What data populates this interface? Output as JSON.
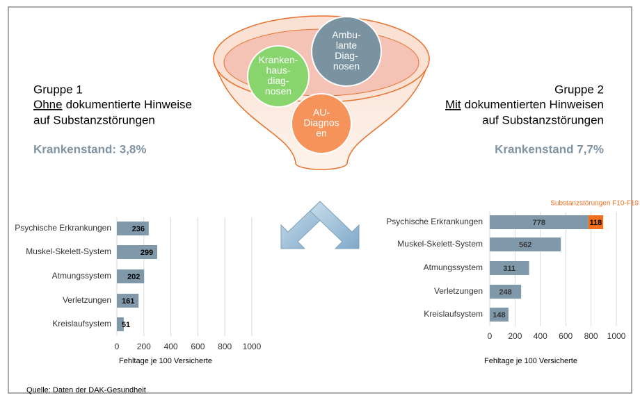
{
  "chart_data": [
    {
      "type": "bar",
      "orientation": "horizontal",
      "categories": [
        "Psychische Erkrankungen",
        "Muskel-Skelett-System",
        "Atmungssystem",
        "Verletzungen",
        "Kreislaufsystem"
      ],
      "series": [
        {
          "color": "#7f99aa",
          "values": [
            236,
            299,
            202,
            161,
            51
          ]
        }
      ],
      "xlim": [
        0,
        1000
      ],
      "xticks": [
        0,
        200,
        400,
        600,
        800,
        1000
      ],
      "xlabel": "Fehltage je 100 Versicherte",
      "grid": true
    },
    {
      "type": "bar",
      "orientation": "horizontal",
      "stacked": true,
      "categories": [
        "Psychische Erkrankungen",
        "Muskel-Skelett-System",
        "Atmungssystem",
        "Verletzungen",
        "Kreislaufsystem"
      ],
      "series": [
        {
          "color": "#7f99aa",
          "values": [
            778,
            562,
            311,
            248,
            148
          ]
        },
        {
          "name": "Substanzstörungen F10-F19",
          "color": "#f07020",
          "values": [
            118,
            null,
            null,
            null,
            null
          ]
        }
      ],
      "xlim": [
        0,
        1000
      ],
      "xticks": [
        0,
        200,
        400,
        600,
        800,
        1000
      ],
      "xlabel": "Fehltage je 100 Versicherte",
      "grid": true
    }
  ],
  "slide": {
    "group1": {
      "title": "Gruppe 1",
      "underlined": "Ohne",
      "rest": "dokumentierte Hinweise",
      "line3": "auf Substanzstörungen",
      "rate": "Krankenstand: 3,8%"
    },
    "group2": {
      "title": "Gruppe 2",
      "underlined": "Mit",
      "rest": "dokumentierten Hinweisen",
      "line3": "auf Substanzstörungen",
      "rate": "Krankenstand 7,7%"
    },
    "funnel": [
      [
        "Kranken-",
        "haus-",
        "diag-",
        "nosen"
      ],
      [
        "Ambu-",
        "lante",
        "Diag-",
        "nosen"
      ],
      [
        "AU-",
        "Diagnos",
        "en"
      ]
    ],
    "source": "Quelle: Daten der DAK-Gesundheit"
  }
}
